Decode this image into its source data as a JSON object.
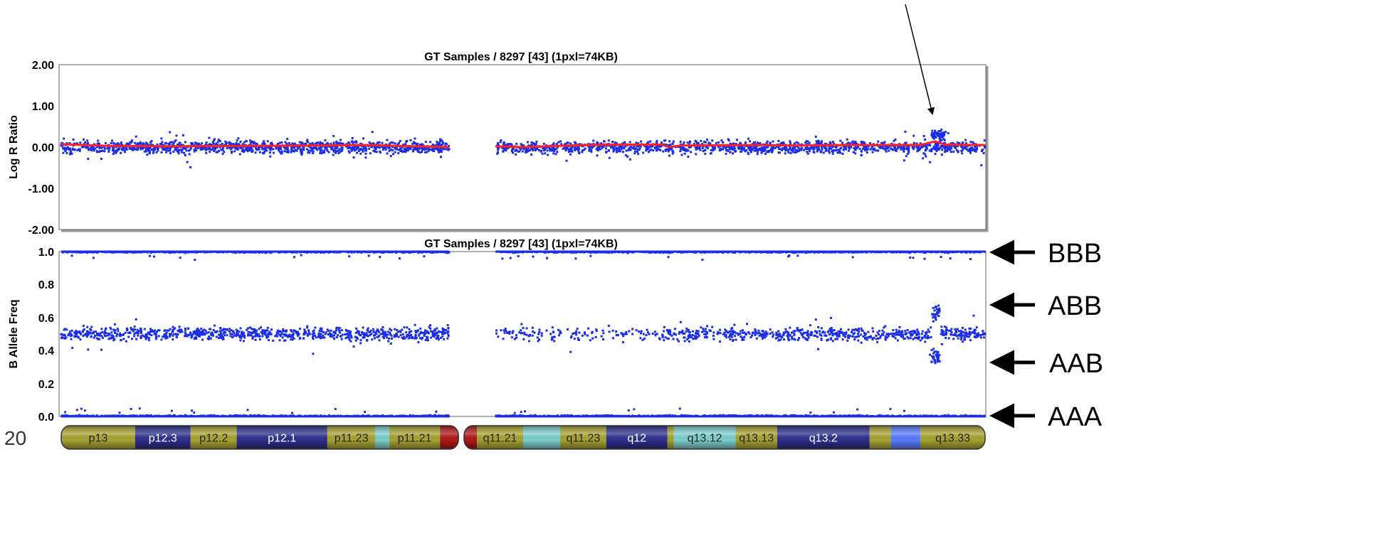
{
  "colors": {
    "points": "#1a2ee6",
    "trend": "#ff2020",
    "dark_band": "#2e2f8c",
    "olive_band": "#a8a432",
    "cyan_band": "#7fd0d0",
    "blue_band": "#5a7dff",
    "centromere": "#b01818"
  },
  "chromosome_number": "20",
  "chart_data": [
    {
      "type": "scatter",
      "title": "GT Samples / 8297 [43]  (1pxl=74KB)",
      "ylabel": "Log R Ratio",
      "ylim": [
        -2.0,
        2.0
      ],
      "yticks": [
        "2.00",
        "1.00",
        "0.00",
        "-1.00",
        "-2.00"
      ],
      "ytick_values": [
        2,
        1,
        0,
        -1,
        -2
      ],
      "grid": false,
      "x_domain": [
        0,
        100
      ],
      "gap": [
        42,
        47
      ],
      "series": [
        {
          "role": "points",
          "baseline": 0.0,
          "spread": 0.1
        },
        {
          "role": "trend",
          "values": [
            [
              0,
              0.07
            ],
            [
              5,
              0.03
            ],
            [
              12,
              0.02
            ],
            [
              20,
              0.03
            ],
            [
              28,
              0.04
            ],
            [
              33,
              0.05
            ],
            [
              38,
              0.02
            ],
            [
              42,
              0.0
            ],
            [
              47,
              0.02
            ],
            [
              50,
              0.0
            ],
            [
              55,
              0.04
            ],
            [
              60,
              0.06
            ],
            [
              65,
              0.06
            ],
            [
              65.8,
              0.0
            ],
            [
              67,
              0.04
            ],
            [
              75,
              0.05
            ],
            [
              80,
              0.04
            ],
            [
              85,
              0.05
            ],
            [
              93,
              0.05
            ],
            [
              94.6,
              0.14
            ],
            [
              95.6,
              0.06
            ],
            [
              100,
              0.05
            ]
          ]
        }
      ],
      "feature": {
        "x_range": [
          94.2,
          95.6
        ],
        "value": 0.3
      }
    },
    {
      "type": "scatter",
      "title": "GT Samples / 8297 [43]  (1pxl=74KB)",
      "ylabel": "B Allele Freq",
      "ylim": [
        0.0,
        1.0
      ],
      "yticks": [
        "1.0",
        "0.8",
        "0.6",
        "0.4",
        "0.2",
        "0.0"
      ],
      "ytick_values": [
        1.0,
        0.8,
        0.6,
        0.4,
        0.2,
        0.0
      ],
      "grid": false,
      "x_domain": [
        0,
        100
      ],
      "gap": [
        42,
        47
      ],
      "clusters": [
        1.0,
        0.5,
        0.0
      ],
      "feature": {
        "x_range": [
          94.2,
          95.1
        ],
        "values": [
          0.64,
          0.36
        ]
      },
      "annotations": [
        {
          "label": "BBB",
          "y": 1.0
        },
        {
          "label": "ABB",
          "y": 0.67
        },
        {
          "label": "AAB",
          "y": 0.33
        },
        {
          "label": "AAA",
          "y": 0.0
        }
      ]
    }
  ],
  "ideogram": {
    "x_domain": [
      0,
      100
    ],
    "p_arm": [
      {
        "label": "p13",
        "start": 0.0,
        "end": 8.0,
        "color": "olive"
      },
      {
        "label": "p12.3",
        "start": 8.0,
        "end": 14.0,
        "color": "dark"
      },
      {
        "label": "p12.2",
        "start": 14.0,
        "end": 19.0,
        "color": "olive"
      },
      {
        "label": "p12.1",
        "start": 19.0,
        "end": 28.8,
        "color": "dark"
      },
      {
        "label": "p11.23",
        "start": 28.8,
        "end": 34.0,
        "color": "olive"
      },
      {
        "label": "",
        "start": 34.0,
        "end": 35.5,
        "color": "cyan"
      },
      {
        "label": "p11.21",
        "start": 35.5,
        "end": 41.0,
        "color": "olive"
      },
      {
        "label": "",
        "start": 41.0,
        "end": 43.0,
        "color": "centromere"
      }
    ],
    "q_arm": [
      {
        "label": "",
        "start": 43.6,
        "end": 45.0,
        "color": "centromere"
      },
      {
        "label": "q11.21",
        "start": 45.0,
        "end": 50.0,
        "color": "olive"
      },
      {
        "label": "",
        "start": 50.0,
        "end": 54.0,
        "color": "cyan"
      },
      {
        "label": "q11.23",
        "start": 54.0,
        "end": 59.0,
        "color": "olive"
      },
      {
        "label": "q12",
        "start": 59.0,
        "end": 65.6,
        "color": "dark"
      },
      {
        "label": "",
        "start": 65.6,
        "end": 66.3,
        "color": "olive"
      },
      {
        "label": "q13.12",
        "start": 66.3,
        "end": 73.0,
        "color": "cyan"
      },
      {
        "label": "q13.13",
        "start": 73.0,
        "end": 77.5,
        "color": "olive"
      },
      {
        "label": "q13.2",
        "start": 77.5,
        "end": 87.5,
        "color": "dark"
      },
      {
        "label": "",
        "start": 87.5,
        "end": 89.8,
        "color": "olive"
      },
      {
        "label": "",
        "start": 89.8,
        "end": 93.0,
        "color": "blue"
      },
      {
        "label": "q13.33",
        "start": 93.0,
        "end": 100.0,
        "color": "olive"
      }
    ]
  }
}
